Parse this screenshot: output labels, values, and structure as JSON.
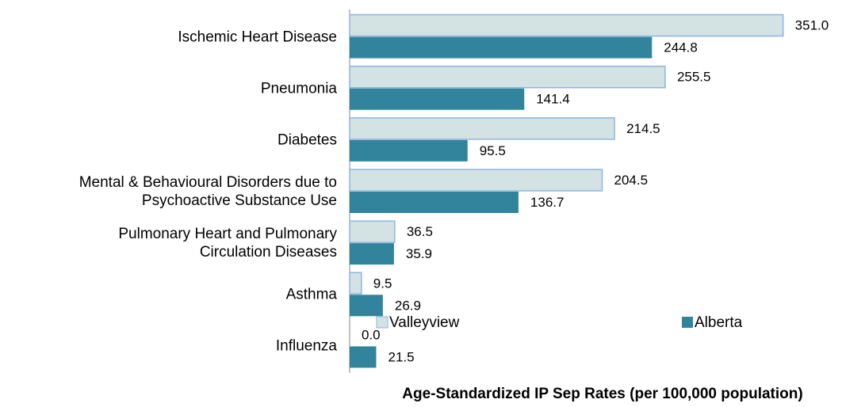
{
  "chart_data": {
    "type": "bar",
    "orientation": "horizontal",
    "x_label": "Age-Standardized IP Sep Rates (per 100,000 population)",
    "categories": [
      "Ischemic Heart Disease",
      "Pneumonia",
      "Diabetes",
      "Mental & Behavioural Disorders due to\nPsychoactive Substance Use",
      "Pulmonary Heart and Pulmonary\nCirculation Diseases",
      "Asthma",
      "Influenza"
    ],
    "series": [
      {
        "name": "Valleyview",
        "color": "#d3e2e2",
        "edgecolor": "#8eb4e3",
        "values": [
          351.0,
          255.5,
          214.5,
          204.5,
          36.5,
          9.5,
          0.0
        ],
        "value_labels": [
          "351.0",
          "255.5",
          "214.5",
          "204.5",
          "36.5",
          "9.5",
          "0.0"
        ]
      },
      {
        "name": "Alberta",
        "color": "#31849b",
        "values": [
          244.8,
          141.4,
          95.5,
          136.7,
          35.9,
          26.9,
          21.5
        ],
        "value_labels": [
          "244.8",
          "141.4",
          "95.5",
          "136.7",
          "35.9",
          "26.9",
          "21.5"
        ]
      }
    ],
    "xlim": [
      0,
      400
    ],
    "legend": "lower right"
  }
}
